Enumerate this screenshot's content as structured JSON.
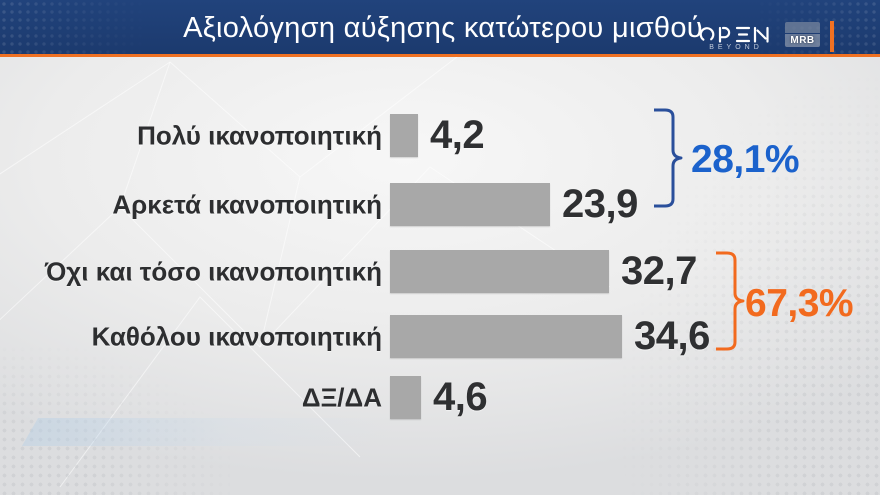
{
  "header": {
    "title": "Αξιολόγηση αύξησης κατώτερου μισθού",
    "channel": {
      "name": "OPEN",
      "subtitle": "BEYOND"
    },
    "agency": {
      "name": "MRB"
    }
  },
  "chart_data": {
    "type": "bar",
    "orientation": "horizontal",
    "title": "Αξιολόγηση αύξησης κατώτερου μισθού",
    "categories": [
      "Πολύ ικανοποιητική",
      "Αρκετά ικανοποιητική",
      "Όχι και τόσο ικανοποιητική",
      "Καθόλου ικανοποιητική",
      "ΔΞ/ΔΑ"
    ],
    "values": [
      4.2,
      23.9,
      32.7,
      34.6,
      4.6
    ],
    "value_labels": [
      "4,2",
      "23,9",
      "32,7",
      "34,6",
      "4,6"
    ],
    "xlim": [
      0,
      40
    ],
    "grid": false,
    "bar_color": "#a8a8a8",
    "groups": [
      {
        "label": "28,1%",
        "rows": [
          0,
          1
        ],
        "color": "#1b62cc",
        "bracket_color": "#2a4f9b"
      },
      {
        "label": "67,3%",
        "rows": [
          2,
          3
        ],
        "color": "#f26a1e",
        "bracket_color": "#f26a1e"
      }
    ]
  },
  "colors": {
    "header_bg": "#1c3a6e",
    "accent_orange": "#f07122",
    "background": "#ececec",
    "text_dark": "#2f3032"
  }
}
